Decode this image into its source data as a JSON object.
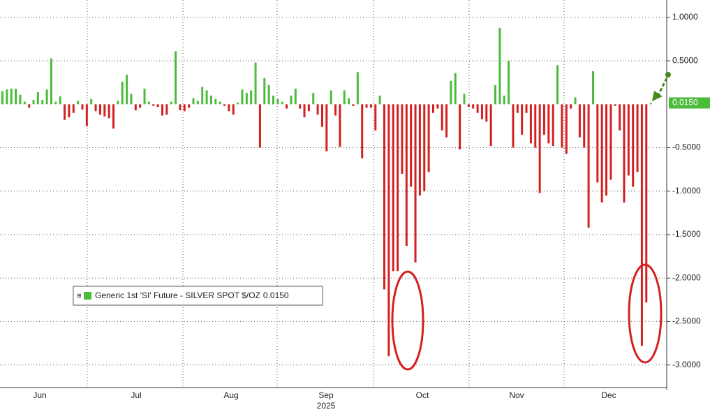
{
  "chart_data": {
    "type": "bar",
    "series": [
      {
        "name": "Generic 1st 'SI' Future - SILVER SPOT $/OZ",
        "positive_color": "#4cbb3c",
        "negative_color": "#d42020",
        "values": [
          0.15,
          0.17,
          0.18,
          0.18,
          0.11,
          0.03,
          -0.04,
          0.05,
          0.14,
          0.05,
          0.17,
          0.53,
          0.03,
          0.09,
          -0.18,
          -0.15,
          -0.1,
          0.04,
          -0.06,
          -0.25,
          0.06,
          -0.08,
          -0.12,
          -0.14,
          -0.16,
          -0.28,
          0.04,
          0.26,
          0.34,
          0.12,
          -0.07,
          -0.04,
          0.18,
          0.03,
          -0.02,
          -0.03,
          -0.13,
          -0.12,
          0.03,
          0.61,
          -0.07,
          -0.08,
          -0.04,
          0.07,
          0.04,
          0.2,
          0.16,
          0.1,
          0.06,
          0.03,
          -0.02,
          -0.08,
          -0.12,
          0.02,
          0.17,
          0.13,
          0.16,
          0.48,
          -0.5,
          0.3,
          0.22,
          0.1,
          0.06,
          0.03,
          -0.05,
          0.1,
          0.18,
          -0.05,
          -0.15,
          -0.08,
          0.13,
          -0.12,
          -0.26,
          -0.54,
          0.16,
          -0.13,
          -0.49,
          0.16,
          0.07,
          -0.02,
          0.37,
          -0.62,
          -0.04,
          -0.04,
          -0.3,
          0.1,
          -2.13,
          -2.9,
          -1.92,
          -1.92,
          -0.8,
          -1.63,
          -0.95,
          -1.82,
          -1.05,
          -1.0,
          -0.78,
          -0.1,
          -0.05,
          -0.3,
          -0.38,
          0.27,
          0.36,
          -0.52,
          0.12,
          -0.03,
          -0.05,
          -0.1,
          -0.17,
          -0.2,
          -0.48,
          0.22,
          0.88,
          0.1,
          0.5,
          -0.5,
          -0.1,
          -0.35,
          -0.1,
          -0.45,
          -0.5,
          -1.02,
          -0.35,
          -0.45,
          -0.48,
          0.45,
          -0.5,
          -0.57,
          -0.05,
          0.08,
          -0.38,
          -0.5,
          -1.42,
          0.38,
          -0.9,
          -1.13,
          -1.05,
          -0.87,
          -0.02,
          -0.3,
          -1.13,
          -0.82,
          -0.95,
          -0.78,
          -2.78,
          -2.28,
          0.015
        ],
        "last_value": 0.015,
        "last_value_label": "0.0150"
      }
    ],
    "months": [
      "Jun",
      "Jul",
      "Aug",
      "Sep",
      "Oct",
      "Nov",
      "Dec"
    ],
    "year": "2025",
    "ylim": [
      -3.26,
      1.2
    ],
    "yticks": [
      {
        "value": 1,
        "label": "1.0000"
      },
      {
        "value": 0.5,
        "label": "0.5000"
      },
      {
        "value": -0.5,
        "label": "-0.5000"
      },
      {
        "value": -1,
        "label": "-1.0000"
      },
      {
        "value": -1.5,
        "label": "-1.5000"
      },
      {
        "value": -2,
        "label": "-2.0000"
      },
      {
        "value": -2.5,
        "label": "-2.5000"
      },
      {
        "value": -3,
        "label": "-3.0000"
      }
    ],
    "grid": true
  }
}
